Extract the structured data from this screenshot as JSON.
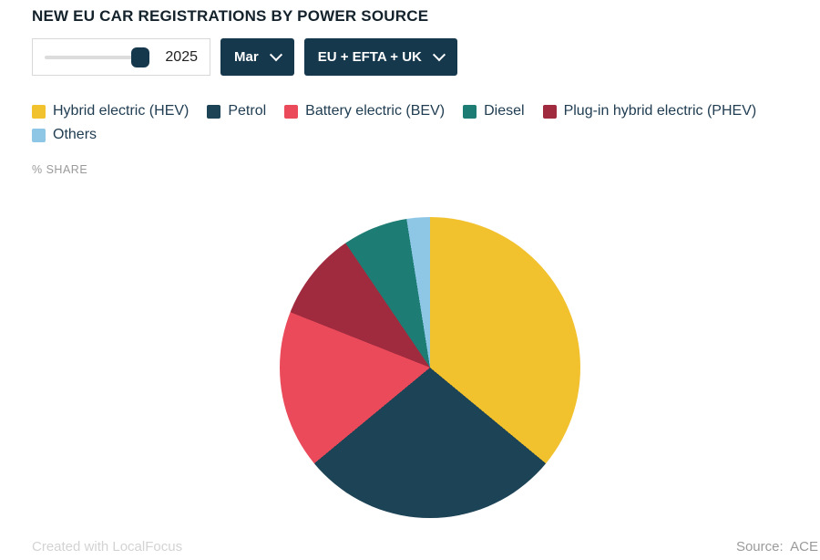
{
  "title": "NEW EU CAR REGISTRATIONS BY POWER SOURCE",
  "controls": {
    "year": "2025",
    "month": "Mar",
    "region": "EU + EFTA + UK"
  },
  "chart_data": {
    "type": "pie",
    "title": "NEW EU CAR REGISTRATIONS BY POWER SOURCE",
    "unit_label": "% SHARE",
    "legend_position": "top",
    "slices": [
      {
        "label": "Hybrid electric (HEV)",
        "value": 36.0,
        "color": "#f2c12e"
      },
      {
        "label": "Petrol",
        "value": 28.0,
        "color": "#1d4356"
      },
      {
        "label": "Battery electric (BEV)",
        "value": 17.0,
        "color": "#ea4a5a"
      },
      {
        "label": "Diesel",
        "value": 7.0,
        "color": "#1d7d74"
      },
      {
        "label": "Plug-in hybrid electric (PHEV)",
        "value": 9.5,
        "color": "#a02b3e"
      },
      {
        "label": "Others",
        "value": 2.5,
        "color": "#8ec7e6"
      }
    ],
    "pie_clockwise_order": [
      "Hybrid electric (HEV)",
      "Petrol",
      "Battery electric (BEV)",
      "Plug-in hybrid electric (PHEV)",
      "Diesel",
      "Others"
    ],
    "start_angle_deg": 0
  },
  "footer": {
    "credit": "Created with LocalFocus",
    "source": "Source:  ACE"
  }
}
